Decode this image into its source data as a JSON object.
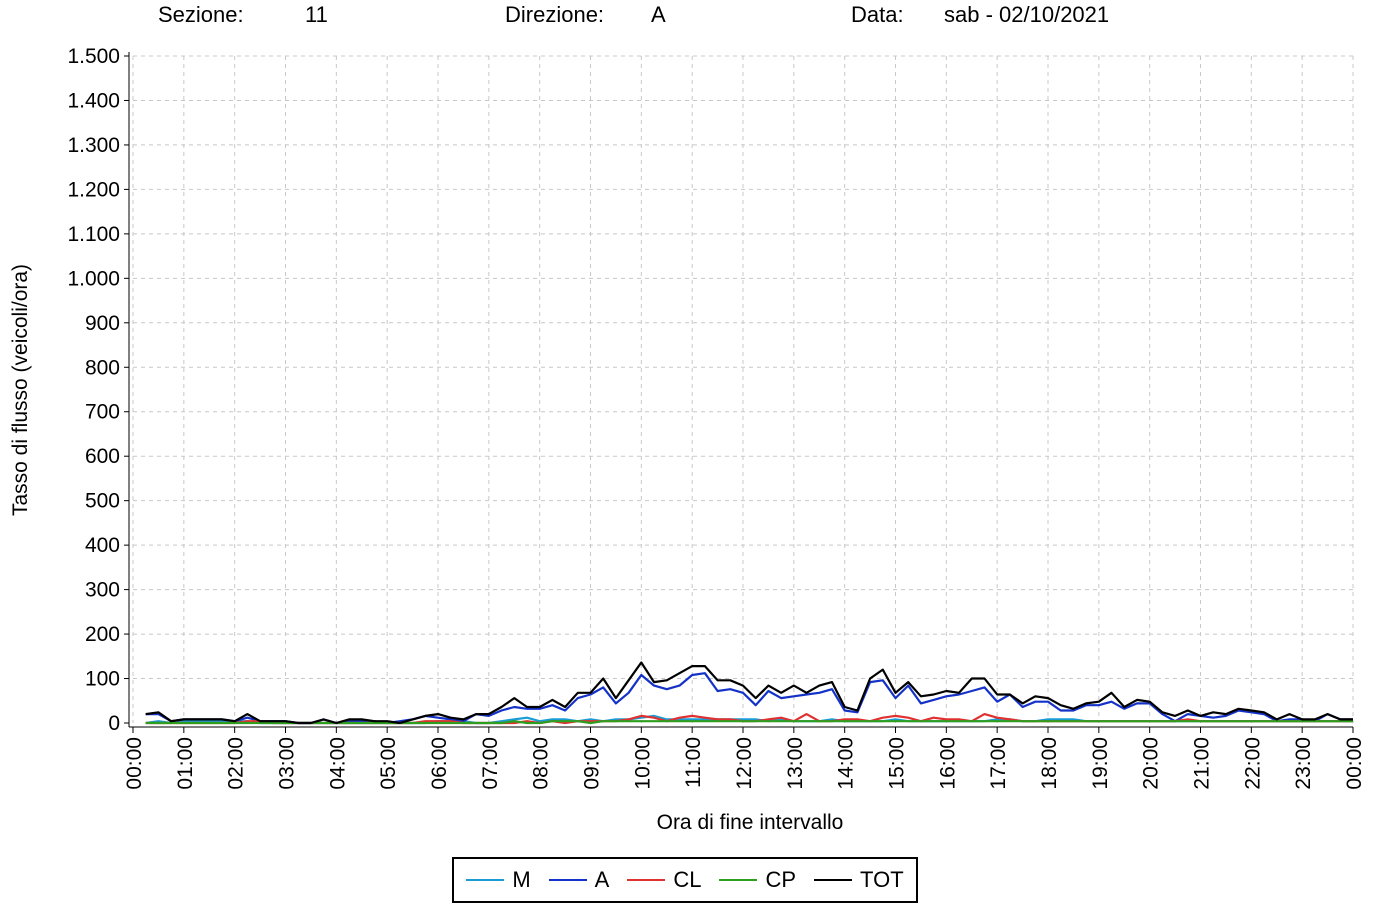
{
  "header": {
    "sezione_label": "Sezione:",
    "sezione_value": "11",
    "direzione_label": "Direzione:",
    "direzione_value": "A",
    "data_label": "Data:",
    "data_value": "sab - 02/10/2021"
  },
  "chart_data": {
    "type": "line",
    "title": "",
    "xlabel": "Ora di fine intervallo",
    "ylabel": "Tasso di flusso (veicoli/ora)",
    "ylim": [
      0,
      1500
    ],
    "xlim": [
      "00:00",
      "24:00"
    ],
    "grid": true,
    "legend_position": "bottom",
    "y_ticks": [
      0,
      100,
      200,
      300,
      400,
      500,
      600,
      700,
      800,
      900,
      1000,
      1100,
      1200,
      1300,
      1400,
      1500
    ],
    "y_tick_labels": [
      "0",
      "100",
      "200",
      "300",
      "400",
      "500",
      "600",
      "700",
      "800",
      "900",
      "1.000",
      "1.100",
      "1.200",
      "1.300",
      "1.400",
      "1.500"
    ],
    "x_tick_labels": [
      "00:00",
      "01:00",
      "02:00",
      "03:00",
      "04:00",
      "05:00",
      "06:00",
      "07:00",
      "08:00",
      "09:00",
      "10:00",
      "11:00",
      "12:00",
      "13:00",
      "14:00",
      "15:00",
      "16:00",
      "17:00",
      "18:00",
      "19:00",
      "20:00",
      "21:00",
      "22:00",
      "23:00",
      "00:00"
    ],
    "x_hours": [
      0.25,
      0.5,
      0.75,
      1.0,
      1.25,
      1.5,
      1.75,
      2.0,
      2.25,
      2.5,
      2.75,
      3.0,
      3.25,
      3.5,
      3.75,
      4.0,
      4.25,
      4.5,
      4.75,
      5.0,
      5.25,
      5.5,
      5.75,
      6.0,
      6.25,
      6.5,
      6.75,
      7.0,
      7.25,
      7.5,
      7.75,
      8.0,
      8.25,
      8.5,
      8.75,
      9.0,
      9.25,
      9.5,
      9.75,
      10.0,
      10.25,
      10.5,
      10.75,
      11.0,
      11.25,
      11.5,
      11.75,
      12.0,
      12.25,
      12.5,
      12.75,
      13.0,
      13.25,
      13.5,
      13.75,
      14.0,
      14.25,
      14.5,
      14.75,
      15.0,
      15.25,
      15.5,
      15.75,
      16.0,
      16.25,
      16.5,
      16.75,
      17.0,
      17.25,
      17.5,
      17.75,
      18.0,
      18.25,
      18.5,
      18.75,
      19.0,
      19.25,
      19.5,
      19.75,
      20.0,
      20.25,
      20.5,
      20.75,
      21.0,
      21.25,
      21.5,
      21.75,
      22.0,
      22.25,
      22.5,
      22.75,
      23.0,
      23.25,
      23.5,
      23.75,
      24.0
    ],
    "series": [
      {
        "name": "M",
        "color": "#1a9dd6",
        "values": [
          0,
          4,
          0,
          4,
          4,
          4,
          4,
          4,
          4,
          0,
          0,
          0,
          0,
          0,
          0,
          0,
          0,
          0,
          0,
          0,
          0,
          0,
          0,
          4,
          4,
          4,
          0,
          0,
          4,
          8,
          12,
          4,
          8,
          8,
          4,
          8,
          4,
          8,
          8,
          12,
          16,
          8,
          8,
          8,
          8,
          8,
          8,
          8,
          8,
          4,
          8,
          4,
          4,
          4,
          8,
          4,
          4,
          4,
          4,
          8,
          4,
          4,
          4,
          4,
          4,
          4,
          4,
          8,
          8,
          4,
          4,
          8,
          8,
          8,
          4,
          4,
          4,
          4,
          4,
          4,
          4,
          4,
          4,
          4,
          4,
          4,
          4,
          4,
          4,
          4,
          4,
          4,
          4,
          4,
          4,
          4
        ]
      },
      {
        "name": "A",
        "color": "#1432c8",
        "values": [
          20,
          20,
          4,
          8,
          8,
          8,
          8,
          4,
          12,
          4,
          4,
          4,
          0,
          0,
          8,
          0,
          4,
          4,
          4,
          0,
          4,
          8,
          16,
          12,
          8,
          4,
          20,
          16,
          28,
          36,
          32,
          32,
          40,
          28,
          56,
          64,
          80,
          44,
          68,
          108,
          84,
          76,
          84,
          108,
          112,
          72,
          76,
          68,
          40,
          72,
          56,
          60,
          64,
          68,
          76,
          28,
          24,
          92,
          96,
          56,
          84,
          44,
          52,
          60,
          64,
          72,
          80,
          48,
          64,
          36,
          48,
          48,
          28,
          28,
          40,
          40,
          48,
          32,
          44,
          44,
          20,
          4,
          20,
          16,
          12,
          16,
          28,
          24,
          20,
          4,
          8,
          8,
          4,
          20,
          8,
          8
        ]
      },
      {
        "name": "CL",
        "color": "#e03030",
        "values": [
          0,
          0,
          0,
          0,
          0,
          0,
          0,
          0,
          4,
          4,
          0,
          0,
          0,
          0,
          0,
          0,
          0,
          0,
          0,
          0,
          0,
          0,
          4,
          4,
          4,
          0,
          0,
          0,
          0,
          0,
          4,
          0,
          4,
          0,
          4,
          4,
          4,
          4,
          8,
          16,
          12,
          4,
          12,
          16,
          12,
          8,
          8,
          4,
          4,
          8,
          12,
          4,
          20,
          4,
          4,
          8,
          8,
          4,
          12,
          16,
          12,
          4,
          12,
          8,
          8,
          4,
          20,
          12,
          8,
          4,
          4,
          4,
          4,
          4,
          4,
          4,
          4,
          4,
          4,
          4,
          4,
          4,
          8,
          4,
          4,
          4,
          4,
          4,
          4,
          4,
          4,
          4,
          4,
          4,
          4,
          4
        ]
      },
      {
        "name": "CP",
        "color": "#2e9e1e",
        "values": [
          0,
          0,
          0,
          0,
          0,
          0,
          0,
          0,
          0,
          0,
          0,
          0,
          0,
          0,
          0,
          0,
          0,
          0,
          0,
          0,
          0,
          0,
          0,
          0,
          0,
          0,
          0,
          0,
          0,
          4,
          0,
          0,
          4,
          4,
          4,
          0,
          4,
          4,
          4,
          4,
          4,
          4,
          4,
          4,
          4,
          4,
          4,
          4,
          4,
          4,
          4,
          4,
          4,
          4,
          4,
          4,
          4,
          4,
          4,
          4,
          4,
          4,
          4,
          4,
          4,
          4,
          4,
          4,
          4,
          4,
          4,
          4,
          4,
          4,
          4,
          4,
          4,
          4,
          4,
          4,
          4,
          4,
          4,
          4,
          4,
          4,
          4,
          4,
          4,
          4,
          4,
          4,
          4,
          4,
          4,
          4
        ]
      },
      {
        "name": "TOT",
        "color": "#000000",
        "values": [
          20,
          24,
          4,
          8,
          8,
          8,
          8,
          4,
          20,
          4,
          4,
          4,
          0,
          0,
          8,
          0,
          8,
          8,
          4,
          4,
          0,
          8,
          16,
          20,
          12,
          8,
          20,
          20,
          36,
          56,
          36,
          36,
          52,
          36,
          68,
          68,
          100,
          56,
          96,
          136,
          92,
          96,
          112,
          128,
          128,
          96,
          96,
          84,
          56,
          84,
          68,
          84,
          68,
          84,
          92,
          36,
          28,
          100,
          120,
          68,
          92,
          60,
          64,
          72,
          68,
          100,
          100,
          64,
          64,
          44,
          60,
          56,
          40,
          32,
          44,
          48,
          68,
          36,
          52,
          48,
          24,
          16,
          28,
          16,
          24,
          20,
          32,
          28,
          24,
          8,
          20,
          8,
          8,
          20,
          8,
          8
        ]
      }
    ]
  }
}
